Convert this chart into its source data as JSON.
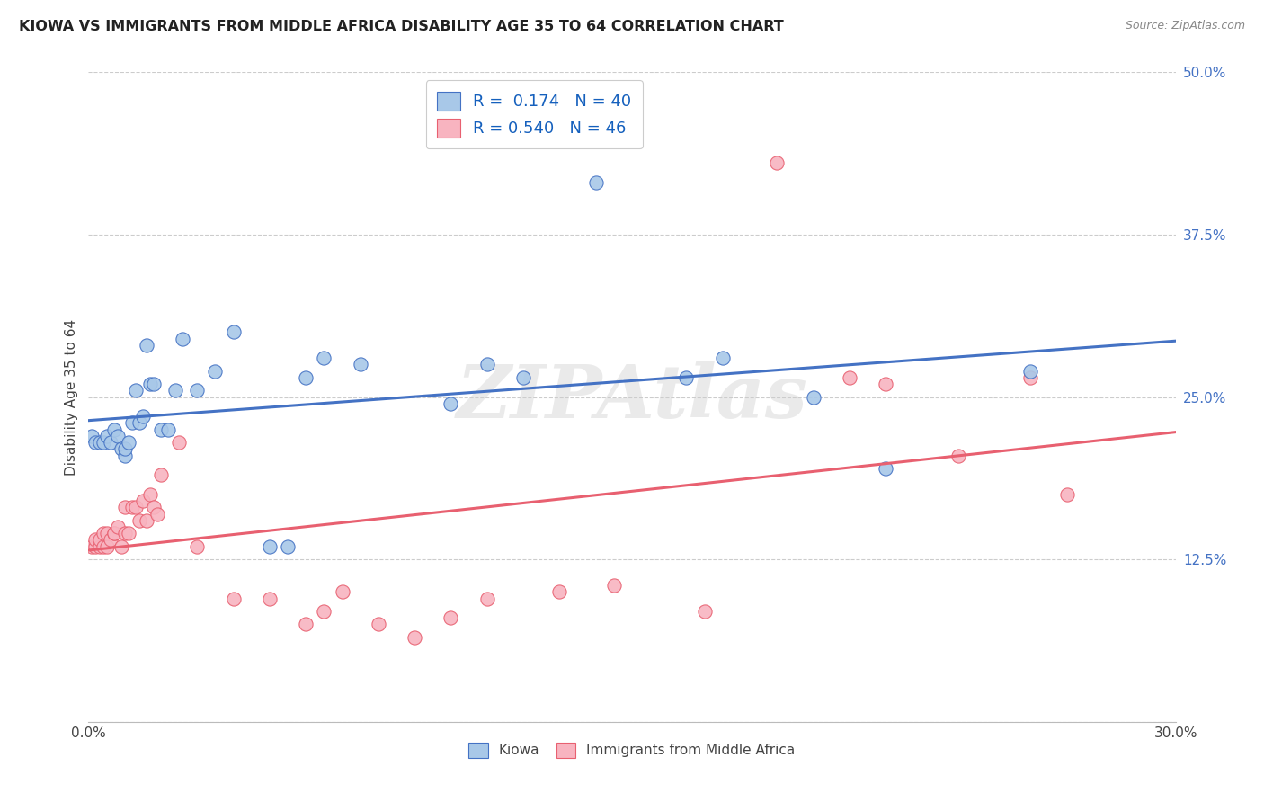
{
  "title": "KIOWA VS IMMIGRANTS FROM MIDDLE AFRICA DISABILITY AGE 35 TO 64 CORRELATION CHART",
  "source": "Source: ZipAtlas.com",
  "ylabel": "Disability Age 35 to 64",
  "x_min": 0.0,
  "x_max": 0.3,
  "y_min": 0.0,
  "y_max": 0.5,
  "x_ticks": [
    0.0,
    0.05,
    0.1,
    0.15,
    0.2,
    0.25,
    0.3
  ],
  "x_tick_labels": [
    "0.0%",
    "",
    "",
    "",
    "",
    "",
    "30.0%"
  ],
  "y_ticks": [
    0.0,
    0.125,
    0.25,
    0.375,
    0.5
  ],
  "y_tick_labels": [
    "",
    "12.5%",
    "25.0%",
    "37.5%",
    "50.0%"
  ],
  "kiowa_fill_color": "#a8c8e8",
  "immigrants_fill_color": "#f8b4c0",
  "kiowa_edge_color": "#4472c4",
  "immigrants_edge_color": "#e86070",
  "kiowa_line_color": "#4472c4",
  "immigrants_line_color": "#e86070",
  "R_kiowa": 0.174,
  "N_kiowa": 40,
  "R_immigrants": 0.54,
  "N_immigrants": 46,
  "watermark": "ZIPAtlas",
  "background_color": "#ffffff",
  "grid_color": "#cccccc",
  "kiowa_x": [
    0.001,
    0.002,
    0.003,
    0.004,
    0.005,
    0.006,
    0.007,
    0.008,
    0.009,
    0.01,
    0.01,
    0.011,
    0.012,
    0.013,
    0.014,
    0.015,
    0.016,
    0.017,
    0.018,
    0.02,
    0.022,
    0.024,
    0.026,
    0.03,
    0.035,
    0.04,
    0.05,
    0.055,
    0.06,
    0.065,
    0.075,
    0.1,
    0.11,
    0.12,
    0.14,
    0.165,
    0.175,
    0.2,
    0.22,
    0.26
  ],
  "kiowa_y": [
    0.22,
    0.215,
    0.215,
    0.215,
    0.22,
    0.215,
    0.225,
    0.22,
    0.21,
    0.205,
    0.21,
    0.215,
    0.23,
    0.255,
    0.23,
    0.235,
    0.29,
    0.26,
    0.26,
    0.225,
    0.225,
    0.255,
    0.295,
    0.255,
    0.27,
    0.3,
    0.135,
    0.135,
    0.265,
    0.28,
    0.275,
    0.245,
    0.275,
    0.265,
    0.415,
    0.265,
    0.28,
    0.25,
    0.195,
    0.27
  ],
  "immigrants_x": [
    0.001,
    0.002,
    0.002,
    0.003,
    0.003,
    0.004,
    0.004,
    0.005,
    0.005,
    0.006,
    0.007,
    0.007,
    0.008,
    0.009,
    0.01,
    0.01,
    0.011,
    0.012,
    0.013,
    0.014,
    0.015,
    0.016,
    0.017,
    0.018,
    0.019,
    0.02,
    0.025,
    0.03,
    0.04,
    0.05,
    0.06,
    0.065,
    0.07,
    0.08,
    0.09,
    0.1,
    0.11,
    0.13,
    0.145,
    0.17,
    0.19,
    0.21,
    0.22,
    0.24,
    0.26,
    0.27
  ],
  "immigrants_y": [
    0.135,
    0.135,
    0.14,
    0.135,
    0.14,
    0.135,
    0.145,
    0.135,
    0.145,
    0.14,
    0.145,
    0.145,
    0.15,
    0.135,
    0.145,
    0.165,
    0.145,
    0.165,
    0.165,
    0.155,
    0.17,
    0.155,
    0.175,
    0.165,
    0.16,
    0.19,
    0.215,
    0.135,
    0.095,
    0.095,
    0.075,
    0.085,
    0.1,
    0.075,
    0.065,
    0.08,
    0.095,
    0.1,
    0.105,
    0.085,
    0.43,
    0.265,
    0.26,
    0.205,
    0.265,
    0.175
  ]
}
